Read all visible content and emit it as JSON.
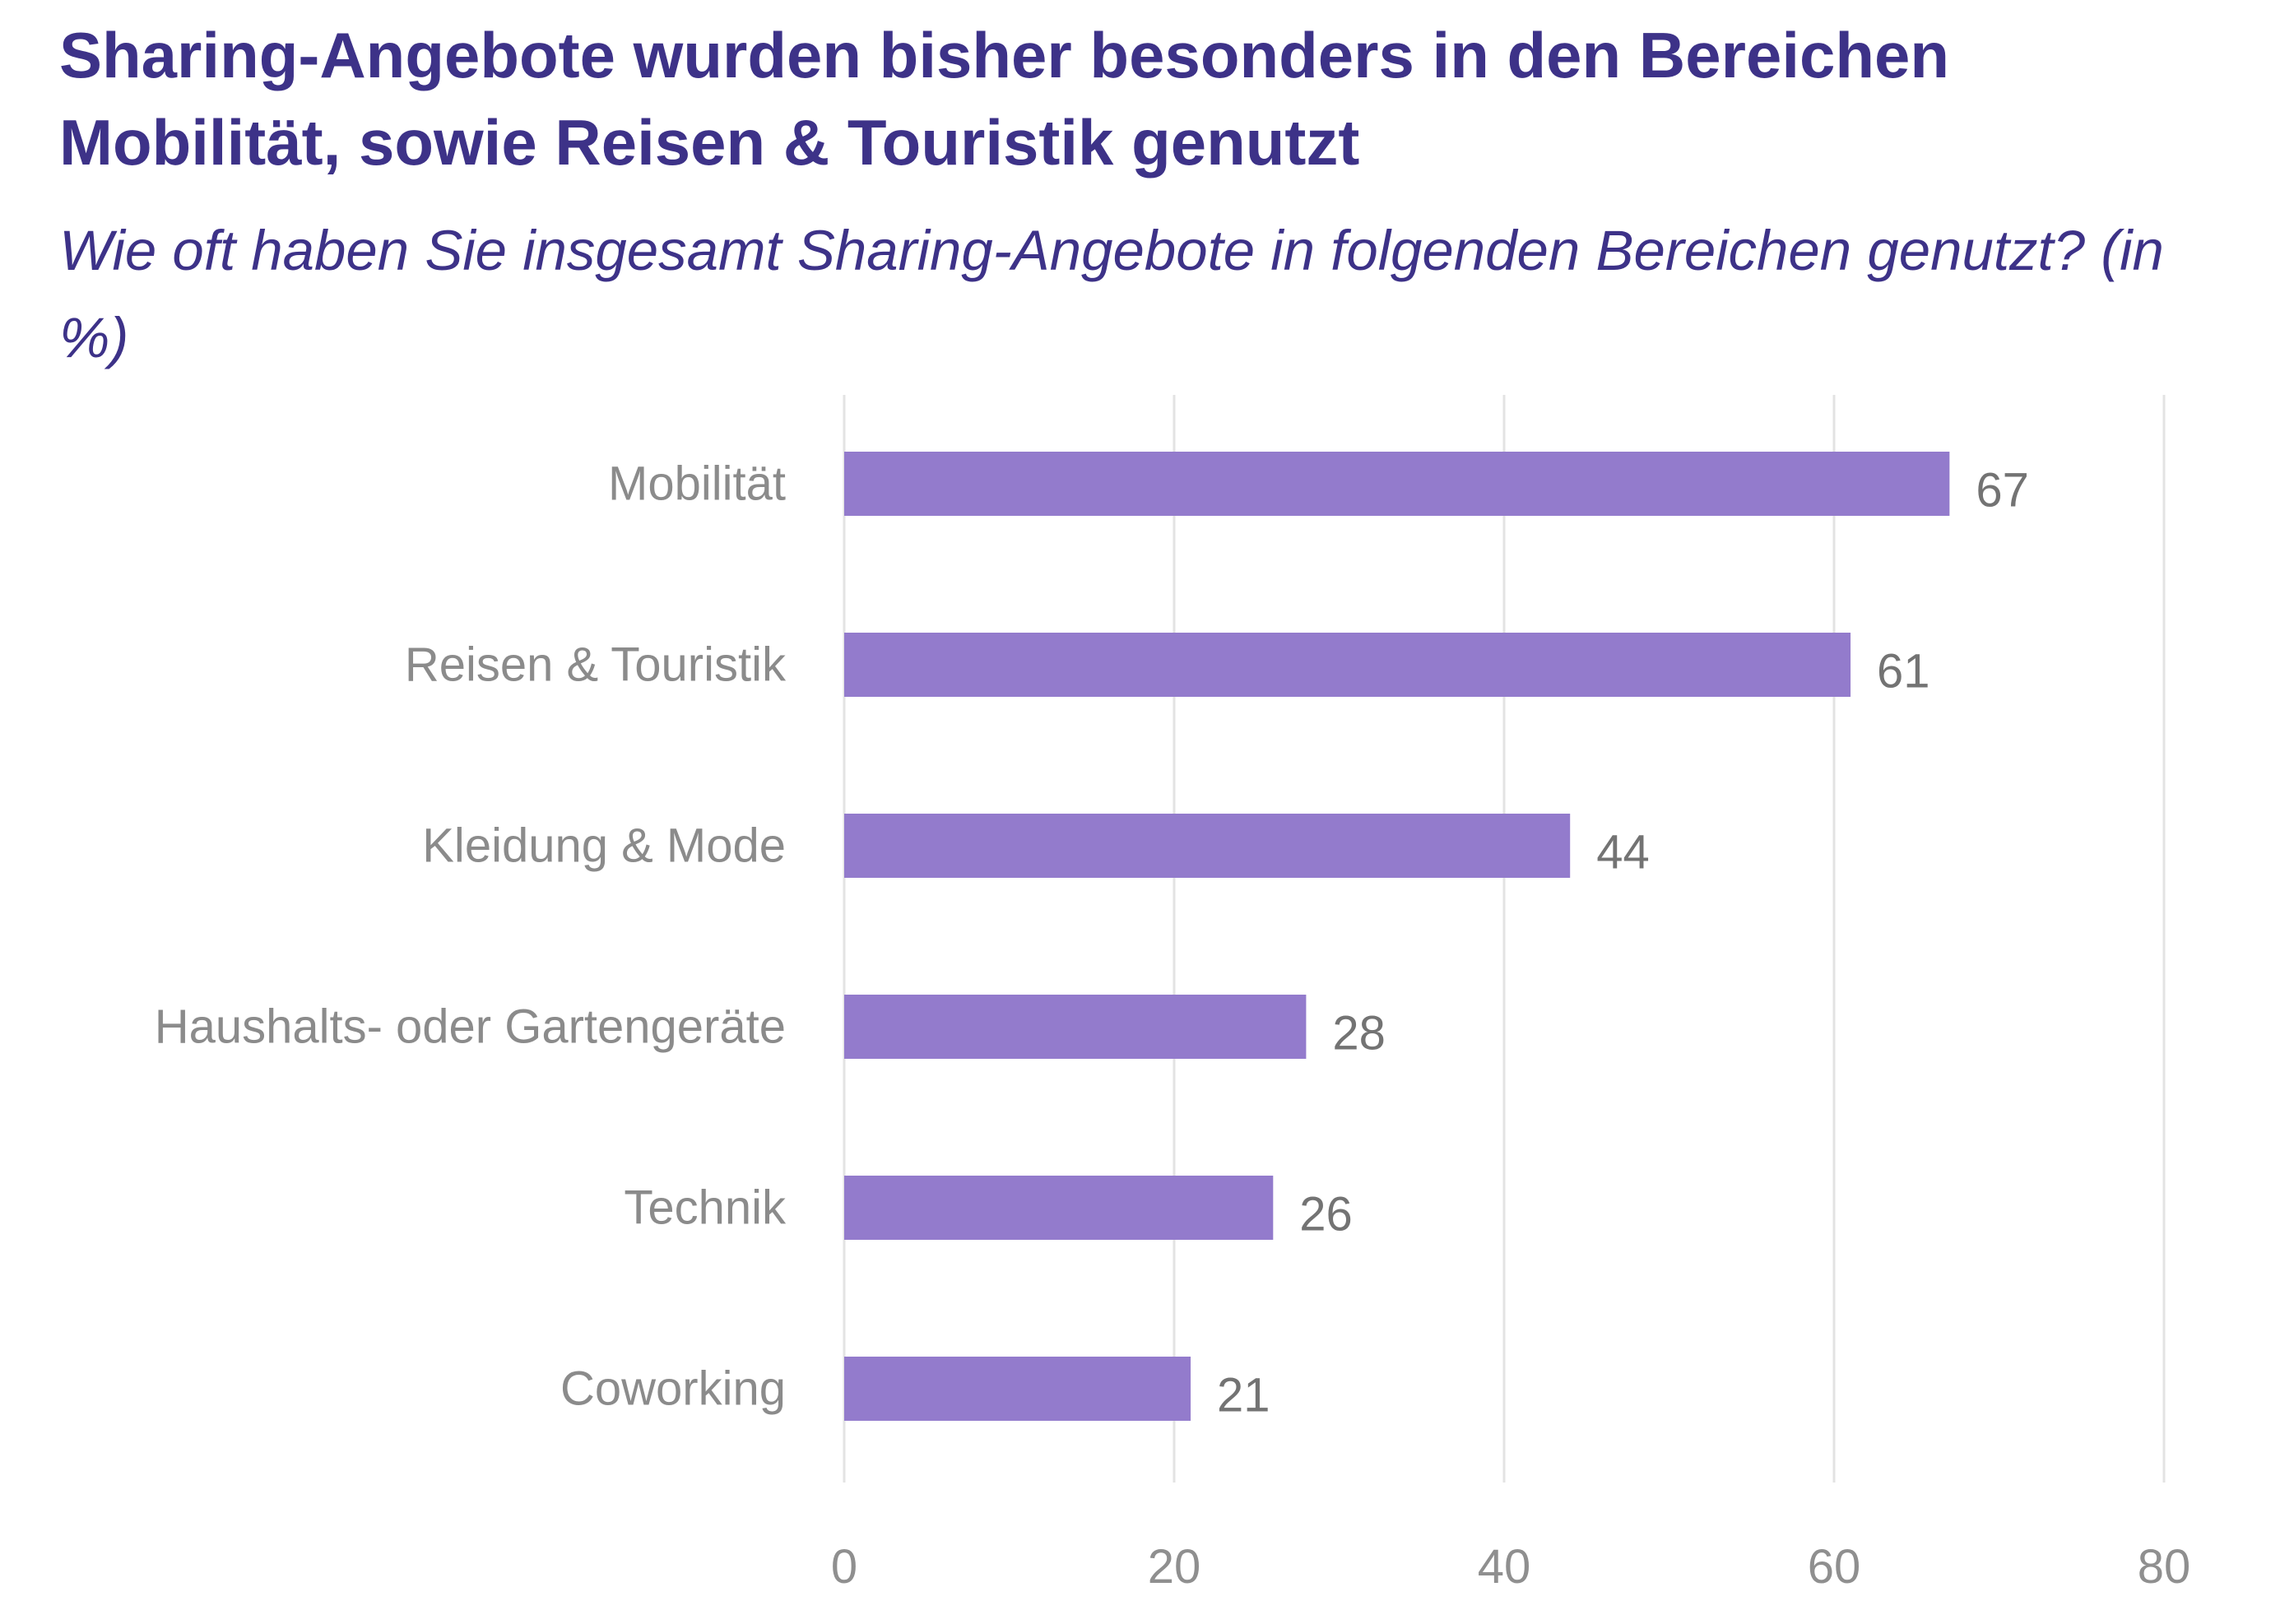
{
  "header": {
    "title": "Sharing-Angebote wurden bisher besonders in den Bereichen Mobilität, sowie Reisen & Touristik genutzt",
    "subtitle": "Wie oft haben Sie insgesamt Sharing-Angebote in folgenden Bereichen genutzt? (in %)"
  },
  "colors": {
    "title": "#3d3288",
    "bar": "#937bcc",
    "grid": "#e3e3e3",
    "category_text": "#8b8b8b",
    "value_text": "#737373",
    "tick_text": "#8f8f8f"
  },
  "chart_data": {
    "type": "bar",
    "orientation": "horizontal",
    "title": "Sharing-Angebote wurden bisher besonders in den Bereichen Mobilität, sowie Reisen & Touristik genutzt",
    "subtitle": "Wie oft haben Sie insgesamt Sharing-Angebote in folgenden Bereichen genutzt? (in %)",
    "categories": [
      "Mobilität",
      "Reisen & Touristik",
      "Kleidung & Mode",
      "Haushalts- oder Gartengeräte",
      "Technik",
      "Coworking"
    ],
    "values": [
      67,
      61,
      44,
      28,
      26,
      21
    ],
    "value_labels": [
      "67",
      "61",
      "44",
      "28",
      "26",
      "21"
    ],
    "xlim": [
      0,
      80
    ],
    "xticks": [
      0,
      20,
      40,
      60,
      80
    ],
    "xtick_labels": [
      "0",
      "20",
      "40",
      "60",
      "80"
    ],
    "xlabel": "",
    "ylabel": "",
    "grid": true,
    "legend": "none"
  }
}
